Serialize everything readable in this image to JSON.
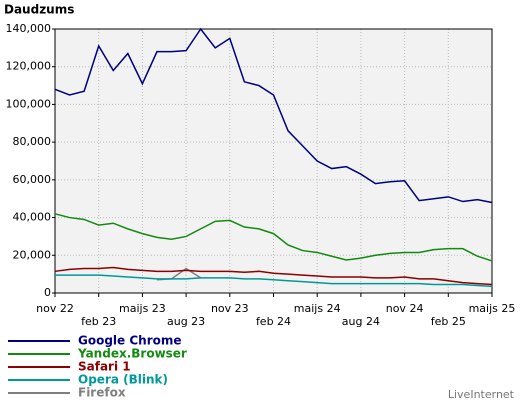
{
  "chart_data": {
    "type": "line",
    "title": "Daudzums",
    "credit": "LiveInternet",
    "categories": [
      "nov 22",
      null,
      null,
      "feb 23",
      null,
      null,
      "maijs 23",
      null,
      null,
      "aug 23",
      null,
      null,
      "nov 23",
      null,
      null,
      "feb 24",
      null,
      null,
      "maijs 24",
      null,
      null,
      "aug 24",
      null,
      null,
      "nov 24",
      null,
      null,
      "feb 25",
      null,
      null,
      "maijs 25"
    ],
    "ylim": [
      0,
      140000
    ],
    "yticks": [
      0,
      {
        "value": 20000,
        "label": "20,000"
      },
      {
        "value": 40000,
        "label": "40,000"
      },
      {
        "value": 60000,
        "label": "60,000"
      },
      {
        "value": 80000,
        "label": "80,000"
      },
      {
        "value": 100000,
        "label": "100,000"
      },
      {
        "value": 120000,
        "label": "120,000"
      },
      {
        "value": 140000,
        "label": "140,000"
      }
    ],
    "grid": true,
    "series": [
      {
        "name": "Google Chrome",
        "color": "#000080",
        "values": [
          108000,
          105000,
          107000,
          131000,
          118000,
          127000,
          111000,
          128000,
          128000,
          128500,
          140000,
          130000,
          135000,
          112000,
          110000,
          105000,
          86000,
          78000,
          70000,
          66000,
          67000,
          63000,
          58000,
          59000,
          59500,
          49000,
          50000,
          51000,
          48500,
          49500,
          48000
        ]
      },
      {
        "name": "Yandex.Browser",
        "color": "#128a12",
        "values": [
          42000,
          40000,
          39000,
          36000,
          37000,
          34000,
          31500,
          29500,
          28500,
          30000,
          34000,
          38000,
          38500,
          35000,
          34000,
          31500,
          25500,
          22500,
          21500,
          19500,
          17500,
          18500,
          20000,
          21000,
          21500,
          21500,
          23000,
          23500,
          23500,
          19500,
          17000
        ]
      },
      {
        "name": "Safari 1",
        "color": "#8b0000",
        "values": [
          11500,
          12500,
          13000,
          13000,
          13500,
          12500,
          12000,
          11500,
          11500,
          12000,
          11500,
          11500,
          11500,
          11000,
          11500,
          10500,
          10000,
          9500,
          9000,
          8500,
          8500,
          8500,
          8000,
          8000,
          8500,
          7500,
          7500,
          6500,
          5500,
          5000,
          4500
        ]
      },
      {
        "name": "Opera (Blink)",
        "color": "#009999",
        "values": [
          9500,
          9500,
          9500,
          9500,
          9000,
          8500,
          8000,
          7500,
          7500,
          7500,
          8000,
          8000,
          8000,
          7500,
          7500,
          7000,
          6500,
          6000,
          5500,
          5000,
          5000,
          5000,
          5000,
          5000,
          5000,
          5000,
          4500,
          4500,
          4500,
          4000,
          3500
        ]
      },
      {
        "name": "Firefox",
        "color": "#808080",
        "values": [
          null,
          null,
          null,
          null,
          null,
          null,
          null,
          7000,
          7500,
          13000,
          8000,
          null,
          null,
          null,
          null,
          null,
          null,
          null,
          null,
          null,
          null,
          null,
          null,
          null,
          null,
          null,
          null,
          null,
          null,
          null,
          null
        ]
      }
    ]
  }
}
